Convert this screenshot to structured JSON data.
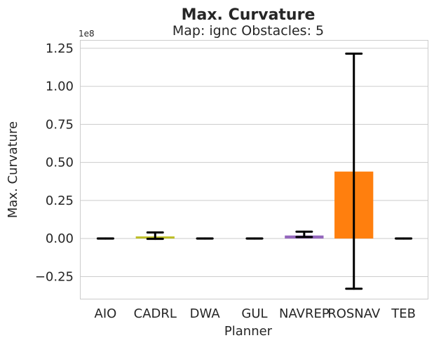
{
  "chart_data": {
    "type": "bar",
    "title": "Max. Curvature",
    "subtitle": "Map: ignc Obstacles: 5",
    "xlabel": "Planner",
    "ylabel": "Max. Curvature",
    "offset_label": "1e8",
    "categories": [
      "AIO",
      "CADRL",
      "DWA",
      "GUL",
      "NAVREP",
      "ROSNAV",
      "TEB"
    ],
    "values": [
      0,
      1000000,
      0,
      0,
      2000000,
      44000000,
      0
    ],
    "errors": [
      [
        0,
        0
      ],
      [
        -200000,
        4000000
      ],
      [
        0,
        0
      ],
      [
        0,
        0
      ],
      [
        1000000,
        4500000
      ],
      [
        -33000000,
        121500000
      ],
      [
        0,
        0
      ]
    ],
    "colors": [
      "#1f77b4",
      "#bcbd22",
      "#2ca02c",
      "#d62728",
      "#9467bd",
      "#ff7f0e",
      "#8c564b"
    ],
    "y_ticks": [
      -0.25,
      0.0,
      0.25,
      0.5,
      0.75,
      1.0,
      1.25
    ],
    "y_tick_labels": [
      "−0.25",
      "0.00",
      "0.25",
      "0.50",
      "0.75",
      "1.00",
      "1.25"
    ],
    "ylim": [
      -40000000,
      130000000
    ],
    "grid": "horizontal"
  }
}
